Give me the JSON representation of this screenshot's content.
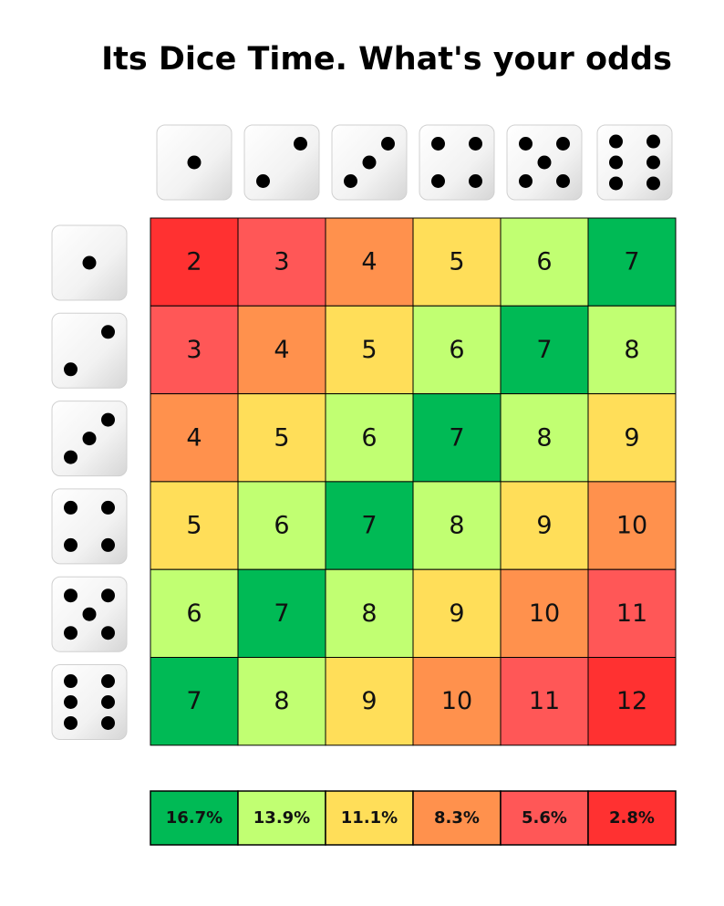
{
  "title": "Its Dice Time. What's your odds",
  "table": {
    "rows": [
      [
        2,
        3,
        4,
        5,
        6,
        7
      ],
      [
        3,
        4,
        5,
        6,
        7,
        8
      ],
      [
        4,
        5,
        6,
        7,
        8,
        9
      ],
      [
        5,
        6,
        7,
        8,
        9,
        10
      ],
      [
        6,
        7,
        8,
        9,
        10,
        11
      ],
      [
        7,
        8,
        9,
        10,
        11,
        12
      ]
    ]
  },
  "legend": [
    {
      "label": "16.7%",
      "color": "#00ba55"
    },
    {
      "label": "13.9%",
      "color": "#c1ff72"
    },
    {
      "label": "11.1%",
      "color": "#ffde59"
    },
    {
      "label": "8.3%",
      "color": "#ff914d"
    },
    {
      "label": "5.6%",
      "color": "#ff5757"
    },
    {
      "label": "2.8%",
      "color": "#ff3131"
    }
  ]
}
